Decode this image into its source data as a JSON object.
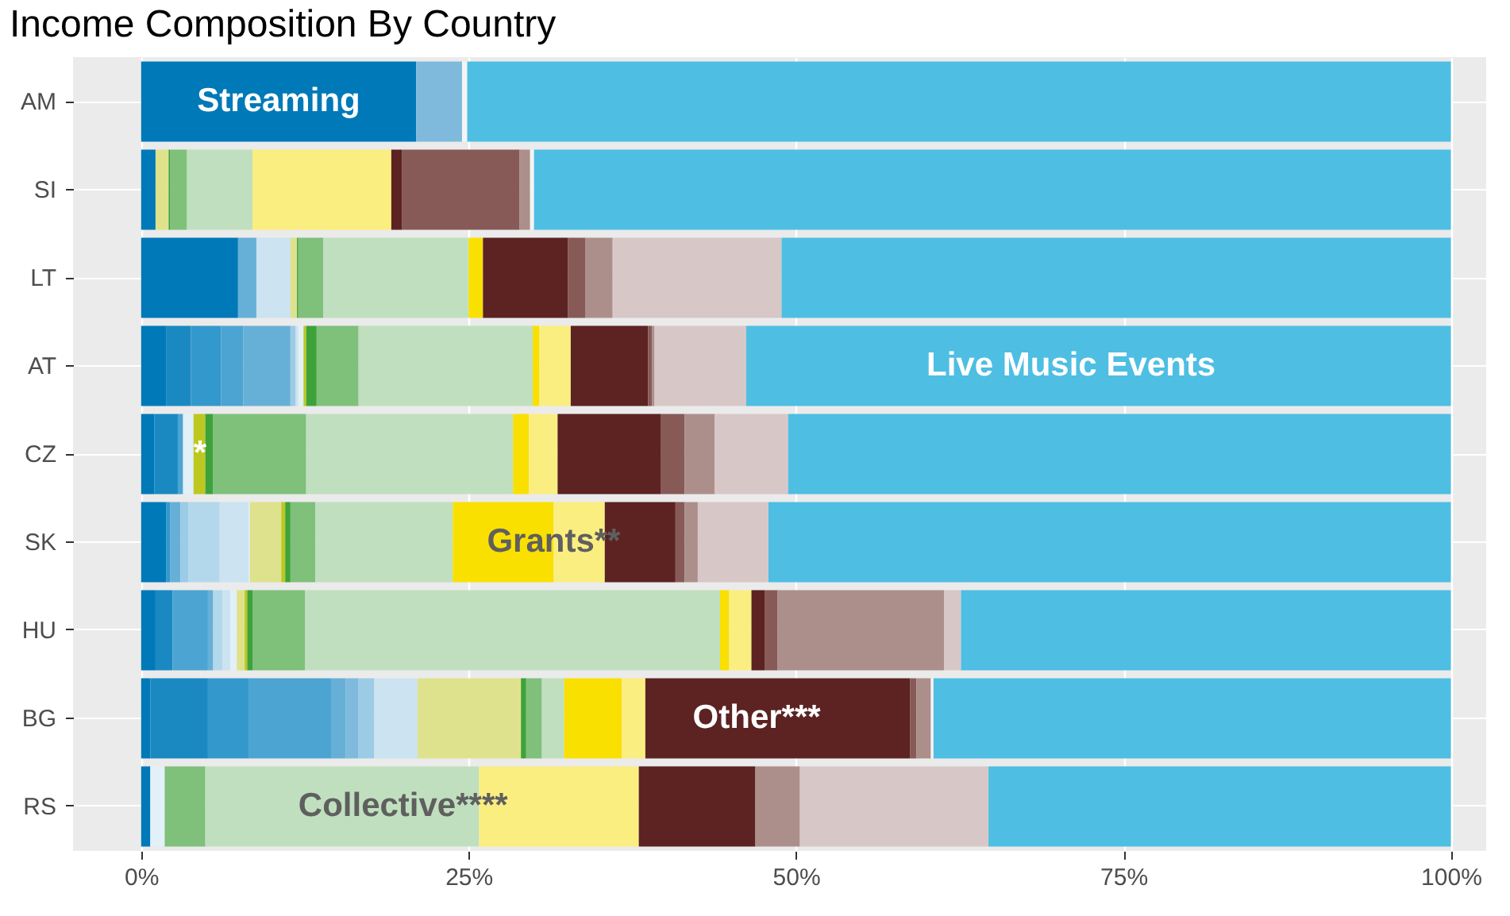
{
  "chart_data": {
    "type": "bar",
    "orientation": "horizontal",
    "stacked": true,
    "title": "Income Composition By Country",
    "categories": [
      "AM",
      "SI",
      "LT",
      "AT",
      "CZ",
      "SK",
      "HU",
      "BG",
      "RS"
    ],
    "series": [
      {
        "color": "#0079b8",
        "values": [
          21.0,
          1.1,
          7.4,
          1.9,
          1.0,
          1.9,
          1.1,
          0.7,
          0.7
        ]
      },
      {
        "color": "#1a89c2",
        "values": [
          null,
          null,
          null,
          1.9,
          1.8,
          null,
          1.3,
          4.4,
          null
        ]
      },
      {
        "color": "#3399cc",
        "values": [
          null,
          null,
          null,
          2.3,
          null,
          0.3,
          null,
          3.1,
          null
        ]
      },
      {
        "color": "#4ca4d2",
        "values": [
          null,
          null,
          null,
          1.7,
          0.4,
          null,
          2.7,
          6.3,
          null
        ]
      },
      {
        "color": "#66b0d8",
        "values": [
          null,
          null,
          1.4,
          3.6,
          null,
          0.8,
          0.4,
          1.1,
          null
        ]
      },
      {
        "color": "#7fbadd",
        "values": [
          3.5,
          null,
          null,
          null,
          null,
          null,
          null,
          1.0,
          null
        ]
      },
      {
        "color": "#9ccbe6",
        "values": [
          null,
          null,
          null,
          0.4,
          null,
          0.6,
          null,
          1.2,
          null
        ]
      },
      {
        "color": "#b3d8ec",
        "values": [
          null,
          null,
          null,
          null,
          null,
          2.4,
          0.7,
          null,
          null
        ]
      },
      {
        "color": "#cce3f1",
        "values": [
          null,
          null,
          2.6,
          0.2,
          null,
          2.2,
          0.6,
          3.3,
          null
        ]
      },
      {
        "color": "#e2f0f8",
        "values": [
          null,
          null,
          null,
          0.4,
          0.8,
          0.1,
          0.5,
          null,
          1.1
        ]
      },
      {
        "color": "#dee28c",
        "values": [
          null,
          1.0,
          0.5,
          null,
          null,
          2.4,
          0.6,
          7.9,
          null
        ]
      },
      {
        "color": "#bdc81e",
        "values": [
          null,
          null,
          null,
          0.2,
          0.9,
          0.3,
          0.2,
          null,
          null
        ]
      },
      {
        "color": "#3ea23a",
        "values": [
          null,
          0.1,
          0.1,
          0.8,
          0.6,
          0.4,
          0.4,
          0.4,
          null
        ]
      },
      {
        "color": "#7fc07a",
        "values": [
          null,
          1.3,
          1.9,
          3.2,
          7.1,
          1.9,
          4.0,
          1.2,
          3.1
        ]
      },
      {
        "color": "#c0dfbe",
        "values": [
          null,
          5.0,
          11.1,
          13.3,
          15.8,
          10.5,
          31.7,
          1.7,
          20.9
        ]
      },
      {
        "color": "#f9e000",
        "values": [
          null,
          null,
          1.1,
          0.5,
          1.2,
          7.7,
          0.7,
          4.4,
          null
        ]
      },
      {
        "color": "#fbee80",
        "values": [
          null,
          10.6,
          null,
          2.4,
          2.2,
          3.9,
          1.7,
          1.8,
          12.2
        ]
      },
      {
        "color": "#5c2322",
        "values": [
          null,
          0.8,
          6.5,
          5.9,
          7.9,
          5.4,
          1.0,
          20.2,
          8.9
        ]
      },
      {
        "color": "#875a58",
        "values": [
          null,
          9.0,
          1.3,
          0.3,
          1.8,
          0.7,
          1.0,
          0.5,
          null
        ]
      },
      {
        "color": "#ac8f8b",
        "values": [
          null,
          0.8,
          2.1,
          0.2,
          2.3,
          1.0,
          12.7,
          1.1,
          3.4
        ]
      },
      {
        "color": "#d7c8c7",
        "values": [
          null,
          null,
          12.9,
          7.0,
          5.6,
          5.4,
          1.3,
          null,
          14.4
        ]
      },
      {
        "color": "#f5f5f5",
        "values": [
          0.4,
          0.3,
          null,
          null,
          null,
          null,
          null,
          0.2,
          null
        ]
      },
      {
        "color": "#4ebee3",
        "values": [
          75.1,
          70.0,
          51.1,
          53.8,
          50.6,
          52.1,
          37.4,
          39.5,
          35.3
        ]
      }
    ],
    "xlim": [
      -5.2,
      102.7
    ],
    "xticks": [
      {
        "value": 0,
        "label": "0%"
      },
      {
        "value": 25,
        "label": "25%"
      },
      {
        "value": 50,
        "label": "50%"
      },
      {
        "value": 75,
        "label": "75%"
      },
      {
        "value": 100,
        "label": "100%"
      }
    ],
    "grid": true,
    "annotations": [
      {
        "text": "Streaming",
        "x": 10.5,
        "y": "AM"
      },
      {
        "text": "Live Music Events",
        "x": 71,
        "y": "AT"
      },
      {
        "text": "*",
        "x": 4.5,
        "y": "CZ"
      },
      {
        "text": "Grants**",
        "x": 31.5,
        "y": "SK"
      },
      {
        "text": "Other***",
        "x": 47,
        "y": "BG"
      },
      {
        "text": "Collective****",
        "x": 20,
        "y": "RS"
      }
    ]
  }
}
